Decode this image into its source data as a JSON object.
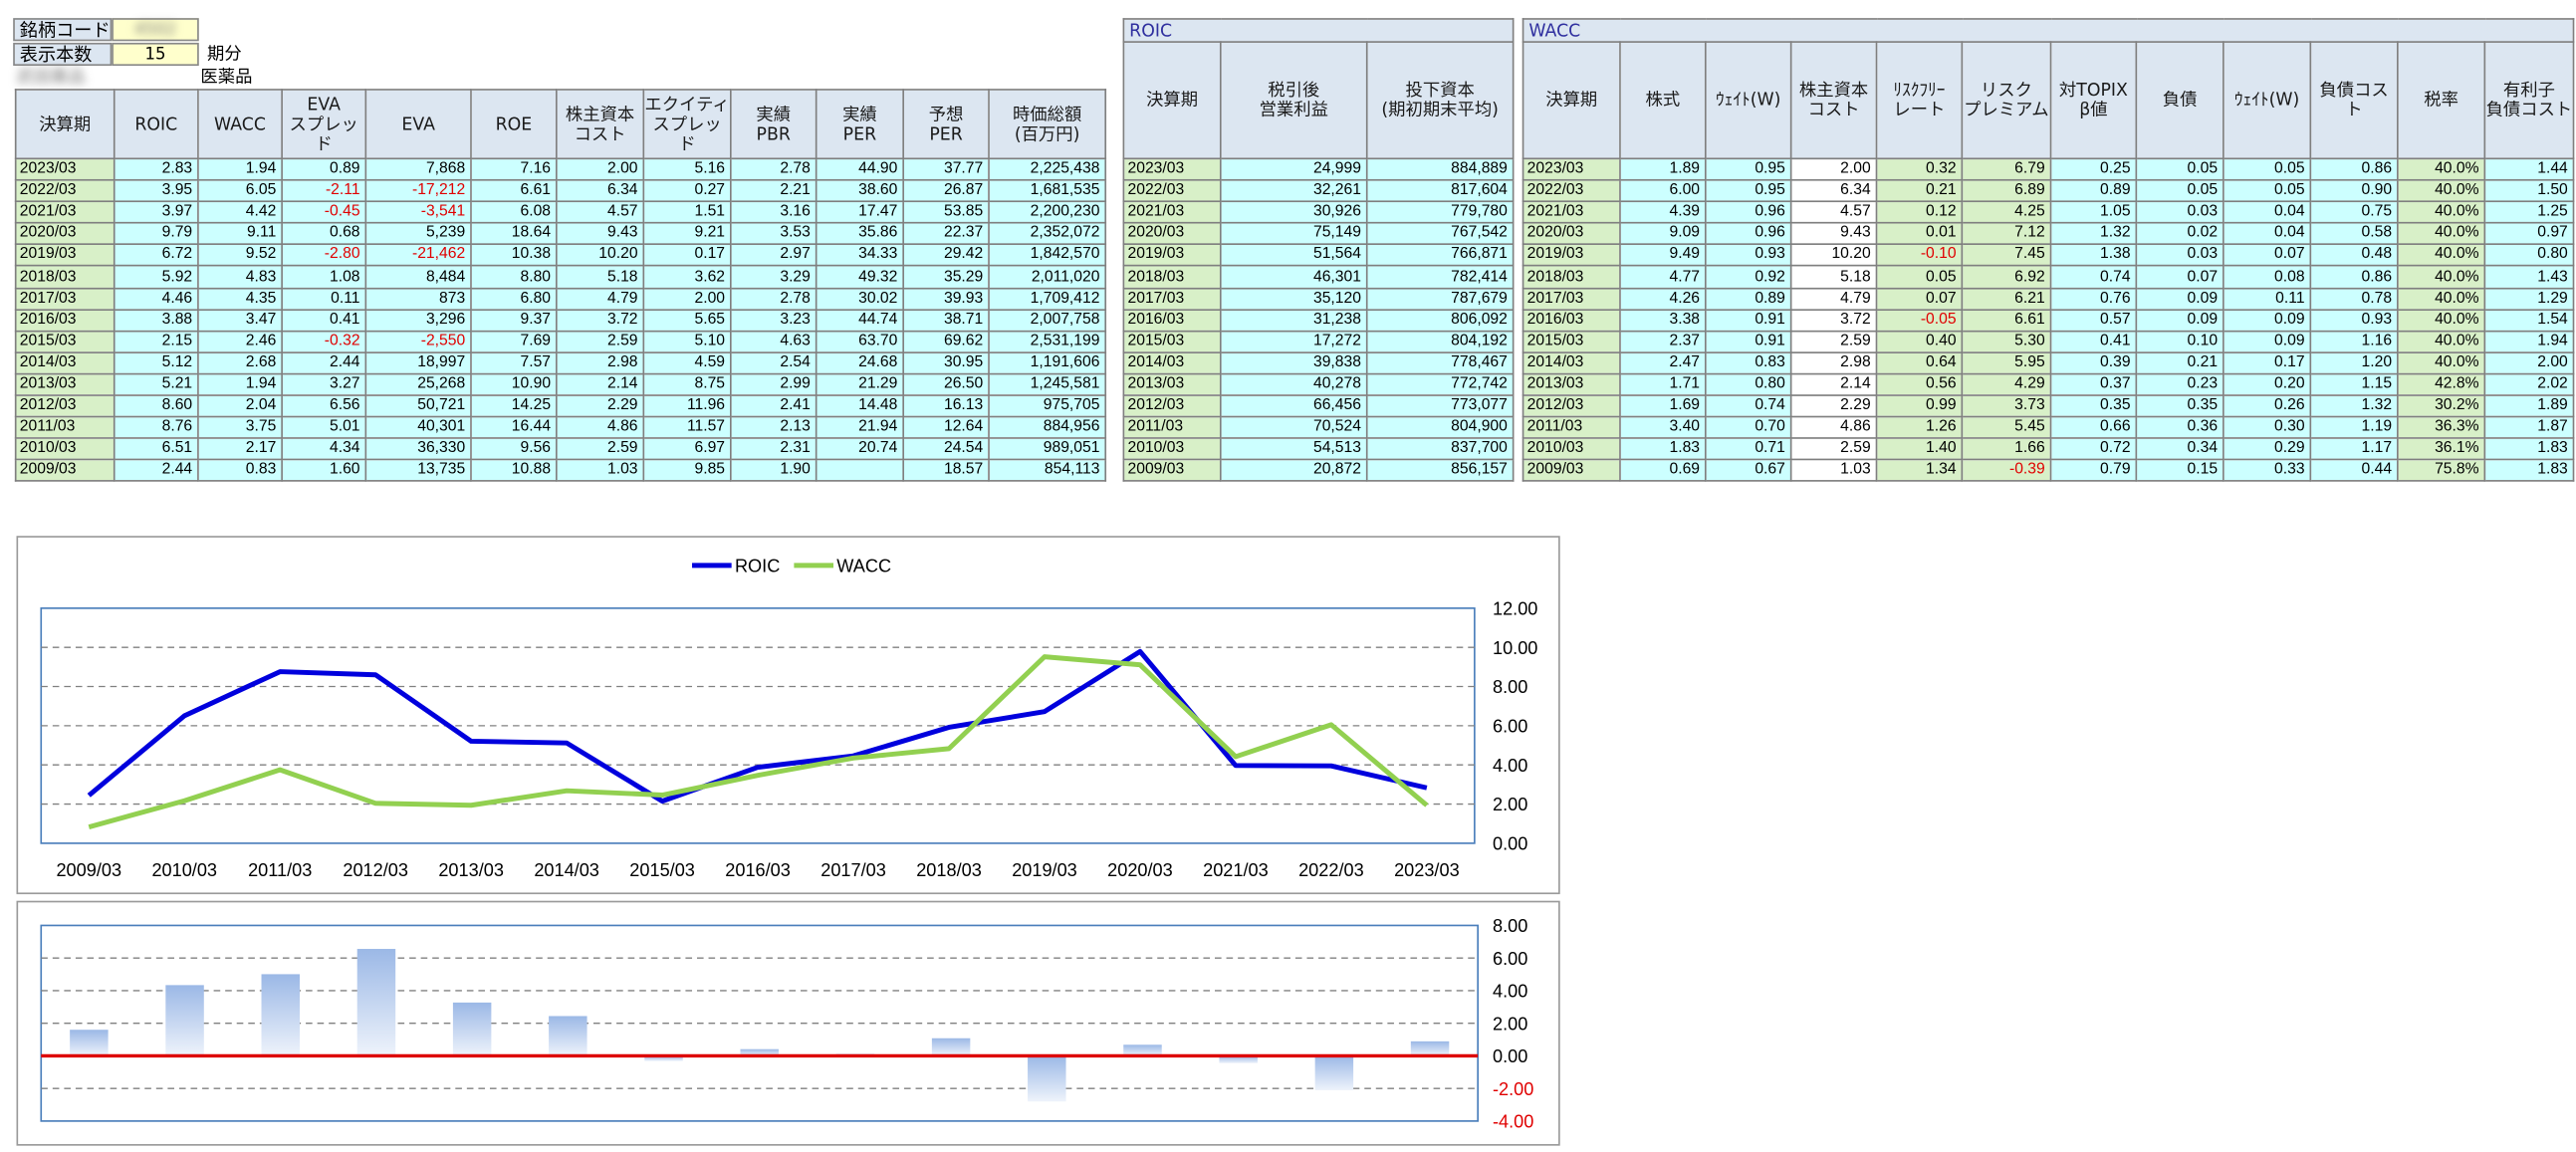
{
  "header": {
    "code_label": "銘柄コード",
    "code_value": "4502",
    "count_label": "表示本数",
    "count_value": "15",
    "count_unit": "期分",
    "company_name": "武田薬品",
    "industry": "医薬品"
  },
  "main_table": {
    "columns": [
      "決算期",
      "ROIC",
      "WACC",
      "EVA\nスプレッド",
      "EVA",
      "ROE",
      "株主資本\nコスト",
      "エクイティ\nスプレッド",
      "実績\nPBR",
      "実績\nPER",
      "予想\nPER",
      "時価総額\n(百万円)"
    ],
    "rows": [
      [
        "2023/03",
        "2.83",
        "1.94",
        "0.89",
        "7,868",
        "7.16",
        "2.00",
        "5.16",
        "2.78",
        "44.90",
        "37.77",
        "2,225,438"
      ],
      [
        "2022/03",
        "3.95",
        "6.05",
        "-2.11",
        "-17,212",
        "6.61",
        "6.34",
        "0.27",
        "2.21",
        "38.60",
        "26.87",
        "1,681,535"
      ],
      [
        "2021/03",
        "3.97",
        "4.42",
        "-0.45",
        "-3,541",
        "6.08",
        "4.57",
        "1.51",
        "3.16",
        "17.47",
        "53.85",
        "2,200,230"
      ],
      [
        "2020/03",
        "9.79",
        "9.11",
        "0.68",
        "5,239",
        "18.64",
        "9.43",
        "9.21",
        "3.53",
        "35.86",
        "22.37",
        "2,352,072"
      ],
      [
        "2019/03",
        "6.72",
        "9.52",
        "-2.80",
        "-21,462",
        "10.38",
        "10.20",
        "0.17",
        "2.97",
        "34.33",
        "29.42",
        "1,842,570"
      ],
      [
        "2018/03",
        "5.92",
        "4.83",
        "1.08",
        "8,484",
        "8.80",
        "5.18",
        "3.62",
        "3.29",
        "49.32",
        "35.29",
        "2,011,020"
      ],
      [
        "2017/03",
        "4.46",
        "4.35",
        "0.11",
        "873",
        "6.80",
        "4.79",
        "2.00",
        "2.78",
        "30.02",
        "39.93",
        "1,709,412"
      ],
      [
        "2016/03",
        "3.88",
        "3.47",
        "0.41",
        "3,296",
        "9.37",
        "3.72",
        "5.65",
        "3.23",
        "44.74",
        "38.71",
        "2,007,758"
      ],
      [
        "2015/03",
        "2.15",
        "2.46",
        "-0.32",
        "-2,550",
        "7.69",
        "2.59",
        "5.10",
        "4.63",
        "63.70",
        "69.62",
        "2,531,199"
      ],
      [
        "2014/03",
        "5.12",
        "2.68",
        "2.44",
        "18,997",
        "7.57",
        "2.98",
        "4.59",
        "2.54",
        "24.68",
        "30.95",
        "1,191,606"
      ],
      [
        "2013/03",
        "5.21",
        "1.94",
        "3.27",
        "25,268",
        "10.90",
        "2.14",
        "8.75",
        "2.99",
        "21.29",
        "26.50",
        "1,245,581"
      ],
      [
        "2012/03",
        "8.60",
        "2.04",
        "6.56",
        "50,721",
        "14.25",
        "2.29",
        "11.96",
        "2.41",
        "14.48",
        "16.13",
        "975,705"
      ],
      [
        "2011/03",
        "8.76",
        "3.75",
        "5.01",
        "40,301",
        "16.44",
        "4.86",
        "11.57",
        "2.13",
        "21.94",
        "12.64",
        "884,956"
      ],
      [
        "2010/03",
        "6.51",
        "2.17",
        "4.34",
        "36,330",
        "9.56",
        "2.59",
        "6.97",
        "2.31",
        "20.74",
        "24.54",
        "989,051"
      ],
      [
        "2009/03",
        "2.44",
        "0.83",
        "1.60",
        "13,735",
        "10.88",
        "1.03",
        "9.85",
        "1.90",
        "",
        "18.57",
        "854,113"
      ]
    ]
  },
  "roic_table": {
    "title": "ROIC",
    "columns": [
      "決算期",
      "税引後\n営業利益",
      "投下資本\n(期初期末平均)"
    ],
    "rows": [
      [
        "2023/03",
        "24,999",
        "884,889"
      ],
      [
        "2022/03",
        "32,261",
        "817,604"
      ],
      [
        "2021/03",
        "30,926",
        "779,780"
      ],
      [
        "2020/03",
        "75,149",
        "767,542"
      ],
      [
        "2019/03",
        "51,564",
        "766,871"
      ],
      [
        "2018/03",
        "46,301",
        "782,414"
      ],
      [
        "2017/03",
        "35,120",
        "787,679"
      ],
      [
        "2016/03",
        "31,238",
        "806,092"
      ],
      [
        "2015/03",
        "17,272",
        "804,192"
      ],
      [
        "2014/03",
        "39,838",
        "778,467"
      ],
      [
        "2013/03",
        "40,278",
        "772,742"
      ],
      [
        "2012/03",
        "66,456",
        "773,077"
      ],
      [
        "2011/03",
        "70,524",
        "804,900"
      ],
      [
        "2010/03",
        "54,513",
        "837,700"
      ],
      [
        "2009/03",
        "20,872",
        "856,157"
      ]
    ]
  },
  "wacc_table": {
    "title": "WACC",
    "columns": [
      "決算期",
      "株式",
      "ｳｪｲﾄ(W)",
      "株主資本\nコスト",
      "ﾘｽｸﾌﾘｰ\nレート",
      "リスク\nプレミアム",
      "対TOPIX\nβ値",
      "負債",
      "ｳｪｲﾄ(W)",
      "負債コスト",
      "税率",
      "有利子\n負債コスト"
    ],
    "rows": [
      [
        "2023/03",
        "1.89",
        "0.95",
        "2.00",
        "0.32",
        "6.79",
        "0.25",
        "0.05",
        "0.05",
        "0.86",
        "40.0%",
        "1.44"
      ],
      [
        "2022/03",
        "6.00",
        "0.95",
        "6.34",
        "0.21",
        "6.89",
        "0.89",
        "0.05",
        "0.05",
        "0.90",
        "40.0%",
        "1.50"
      ],
      [
        "2021/03",
        "4.39",
        "0.96",
        "4.57",
        "0.12",
        "4.25",
        "1.05",
        "0.03",
        "0.04",
        "0.75",
        "40.0%",
        "1.25"
      ],
      [
        "2020/03",
        "9.09",
        "0.96",
        "9.43",
        "0.01",
        "7.12",
        "1.32",
        "0.02",
        "0.04",
        "0.58",
        "40.0%",
        "0.97"
      ],
      [
        "2019/03",
        "9.49",
        "0.93",
        "10.20",
        "-0.10",
        "7.45",
        "1.38",
        "0.03",
        "0.07",
        "0.48",
        "40.0%",
        "0.80"
      ],
      [
        "2018/03",
        "4.77",
        "0.92",
        "5.18",
        "0.05",
        "6.92",
        "0.74",
        "0.07",
        "0.08",
        "0.86",
        "40.0%",
        "1.43"
      ],
      [
        "2017/03",
        "4.26",
        "0.89",
        "4.79",
        "0.07",
        "6.21",
        "0.76",
        "0.09",
        "0.11",
        "0.78",
        "40.0%",
        "1.29"
      ],
      [
        "2016/03",
        "3.38",
        "0.91",
        "3.72",
        "-0.05",
        "6.61",
        "0.57",
        "0.09",
        "0.09",
        "0.93",
        "40.0%",
        "1.54"
      ],
      [
        "2015/03",
        "2.37",
        "0.91",
        "2.59",
        "0.40",
        "5.30",
        "0.41",
        "0.10",
        "0.09",
        "1.16",
        "40.0%",
        "1.94"
      ],
      [
        "2014/03",
        "2.47",
        "0.83",
        "2.98",
        "0.64",
        "5.95",
        "0.39",
        "0.21",
        "0.17",
        "1.20",
        "40.0%",
        "2.00"
      ],
      [
        "2013/03",
        "1.71",
        "0.80",
        "2.14",
        "0.56",
        "4.29",
        "0.37",
        "0.23",
        "0.20",
        "1.15",
        "42.8%",
        "2.02"
      ],
      [
        "2012/03",
        "1.69",
        "0.74",
        "2.29",
        "0.99",
        "3.73",
        "0.35",
        "0.35",
        "0.26",
        "1.32",
        "30.2%",
        "1.89"
      ],
      [
        "2011/03",
        "3.40",
        "0.70",
        "4.86",
        "1.26",
        "5.45",
        "0.66",
        "0.36",
        "0.30",
        "1.19",
        "36.3%",
        "1.87"
      ],
      [
        "2010/03",
        "1.83",
        "0.71",
        "2.59",
        "1.40",
        "1.66",
        "0.72",
        "0.34",
        "0.29",
        "1.17",
        "36.1%",
        "1.83"
      ],
      [
        "2009/03",
        "0.69",
        "0.67",
        "1.03",
        "1.34",
        "-0.39",
        "0.79",
        "0.15",
        "0.33",
        "0.44",
        "75.8%",
        "1.83"
      ]
    ]
  },
  "colors": {
    "roic": "#0000dd",
    "wacc": "#92d050",
    "bar": "#9bb8e6",
    "zero_line": "#dd0000",
    "negative_text": "#e00000"
  },
  "chart_data": [
    {
      "type": "line",
      "x": [
        "2009/03",
        "2010/03",
        "2011/03",
        "2012/03",
        "2013/03",
        "2014/03",
        "2015/03",
        "2016/03",
        "2017/03",
        "2018/03",
        "2019/03",
        "2020/03",
        "2021/03",
        "2022/03",
        "2023/03"
      ],
      "series": [
        {
          "name": "ROIC",
          "values": [
            2.44,
            6.51,
            8.76,
            8.6,
            5.21,
            5.12,
            2.15,
            3.88,
            4.46,
            5.92,
            6.72,
            9.79,
            3.97,
            3.95,
            2.83
          ]
        },
        {
          "name": "WACC",
          "values": [
            0.83,
            2.17,
            3.75,
            2.04,
            1.94,
            2.68,
            2.46,
            3.47,
            4.35,
            4.83,
            9.52,
            9.11,
            4.42,
            6.05,
            1.94
          ]
        }
      ],
      "ylim": [
        0,
        12
      ],
      "yticks": [
        "0.00",
        "2.00",
        "4.00",
        "6.00",
        "8.00",
        "10.00",
        "12.00"
      ],
      "legend": "top-center",
      "grid": true
    },
    {
      "type": "bar",
      "categories": [
        "2009/03",
        "2010/03",
        "2011/03",
        "2012/03",
        "2013/03",
        "2014/03",
        "2015/03",
        "2016/03",
        "2017/03",
        "2018/03",
        "2019/03",
        "2020/03",
        "2021/03",
        "2022/03",
        "2023/03"
      ],
      "values": [
        1.6,
        4.34,
        5.01,
        6.56,
        3.27,
        2.44,
        -0.32,
        0.41,
        0.11,
        1.08,
        -2.8,
        0.68,
        -0.45,
        -2.11,
        0.89
      ],
      "ylim": [
        -4,
        8
      ],
      "yticks": [
        "-4.00",
        "-2.00",
        "0.00",
        "2.00",
        "4.00",
        "6.00",
        "8.00"
      ],
      "grid": true
    }
  ]
}
